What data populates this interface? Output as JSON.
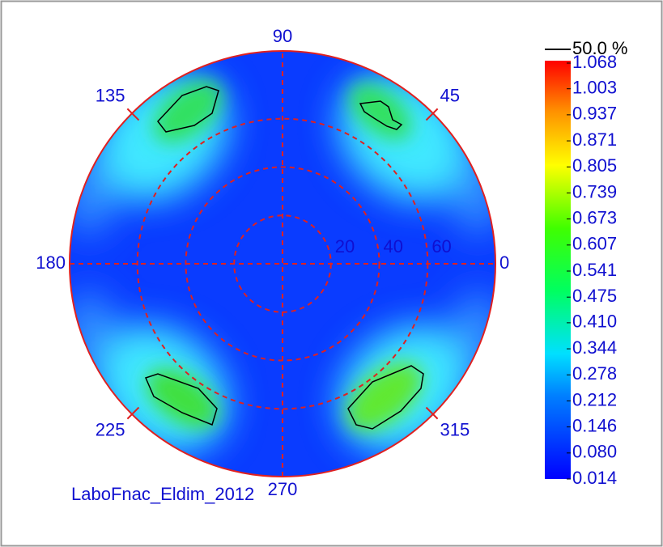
{
  "chart_data": {
    "type": "polar-heatmap",
    "angle_labels": [
      0,
      45,
      90,
      135,
      180,
      225,
      270,
      315
    ],
    "rlim": [
      0,
      88
    ],
    "rticks": [
      20,
      40,
      60
    ],
    "clim": [
      0.014,
      1.068
    ],
    "cticks": [
      1.068,
      1.003,
      0.937,
      0.871,
      0.805,
      0.739,
      0.673,
      0.607,
      0.541,
      0.475,
      {
        "value": 0.41,
        "label": "0.410"
      },
      0.344,
      0.278,
      0.212,
      0.146,
      {
        "value": 0.08,
        "label": "0.080"
      },
      0.014
    ],
    "contour_label": "50.0 %",
    "footer": "LaboFnac_Eldim_2012",
    "grid": true
  }
}
